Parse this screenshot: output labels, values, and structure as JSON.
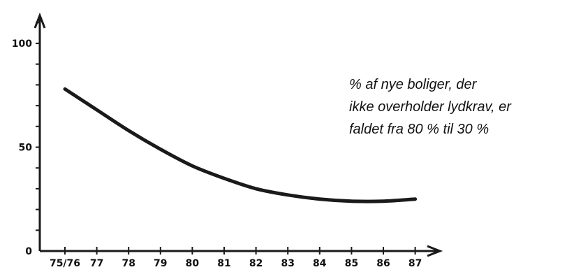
{
  "chart_data": {
    "type": "line",
    "categories": [
      "75/76",
      "77",
      "78",
      "79",
      "80",
      "81",
      "82",
      "83",
      "84",
      "85",
      "86",
      "87"
    ],
    "series": [
      {
        "values": [
          78,
          68,
          58,
          49,
          41,
          35,
          30,
          27,
          25,
          24,
          24,
          25
        ]
      }
    ],
    "ylim": [
      0,
      120
    ],
    "y_ticks": [
      "0",
      "50",
      "100"
    ],
    "title": "",
    "xlabel": "",
    "ylabel": "",
    "grid": false,
    "annotation": [
      "% af nye boliger, der",
      "ikke overholder lydkrav, er",
      "faldet fra 80 % til 30 %"
    ],
    "colors": {
      "line": "#1a1a1a",
      "axis": "#1a1a1a",
      "text": "#111111"
    }
  }
}
